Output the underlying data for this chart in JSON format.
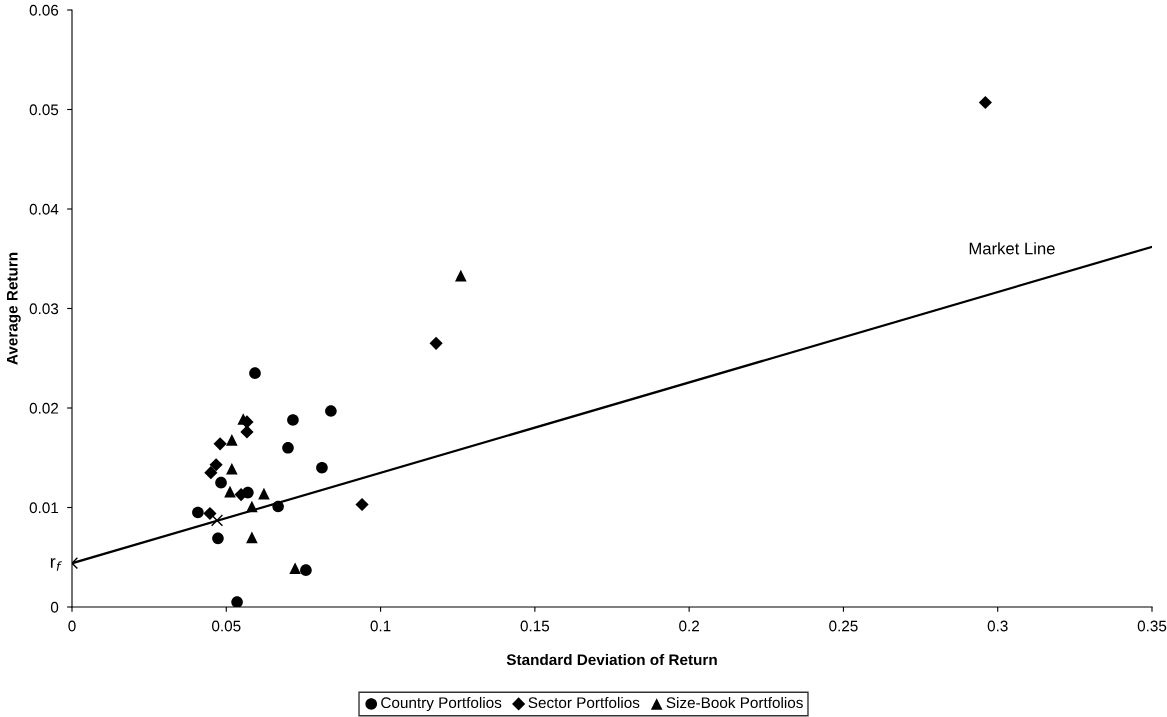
{
  "chart_data": {
    "type": "scatter",
    "xlabel": "Standard Deviation of Return",
    "ylabel": "Average Return",
    "xlim": [
      0,
      0.35
    ],
    "ylim": [
      0,
      0.06
    ],
    "xticks": [
      0,
      0.05,
      0.1,
      0.15,
      0.2,
      0.25,
      0.3,
      0.35
    ],
    "yticks": [
      0,
      0.01,
      0.02,
      0.03,
      0.04,
      0.05,
      0.06
    ],
    "grid": false,
    "legend": "bottom",
    "series": [
      {
        "name": "Country Portfolios",
        "color": "#000000",
        "marker": "circle",
        "x": [
          0.0593,
          0.0839,
          0.0716,
          0.07,
          0.081,
          0.0483,
          0.057,
          0.0668,
          0.0408,
          0.0473,
          0.0758,
          0.0535
        ],
        "values": [
          0.0235,
          0.0197,
          0.0188,
          0.016,
          0.014,
          0.0125,
          0.0115,
          0.0101,
          0.0095,
          0.0069,
          0.0037,
          0.0005
        ]
      },
      {
        "name": "Sector Portfolios",
        "color": "#000000",
        "marker": "diamond",
        "x": [
          0.0567,
          0.0567,
          0.048,
          0.0467,
          0.045,
          0.0548,
          0.0447,
          0.094,
          0.118,
          0.296
        ],
        "values": [
          0.0186,
          0.0176,
          0.0164,
          0.0143,
          0.0135,
          0.0113,
          0.0094,
          0.0103,
          0.0265,
          0.0507
        ]
      },
      {
        "name": "Size-Book Portfolios",
        "color": "#000000",
        "marker": "triangle",
        "x": [
          0.0555,
          0.0518,
          0.0518,
          0.0512,
          0.0622,
          0.0583,
          0.0583,
          0.0723,
          0.126
        ],
        "values": [
          0.0189,
          0.0168,
          0.0139,
          0.0116,
          0.0114,
          0.0101,
          0.007,
          0.0039,
          0.0333
        ]
      },
      {
        "type": "line",
        "color": "#000000",
        "marker": "none",
        "x": [
          0,
          0.35
        ],
        "values": [
          0.0044,
          0.0362
        ]
      },
      {
        "color": "#000000",
        "marker": "cross",
        "x": [
          0,
          0.047
        ],
        "values": [
          0.0044,
          0.0087
        ]
      }
    ],
    "annotations": [
      "Market Line",
      {
        "text": "r$_{f}$",
        "x": 0,
        "y": 0.0044
      }
    ]
  }
}
